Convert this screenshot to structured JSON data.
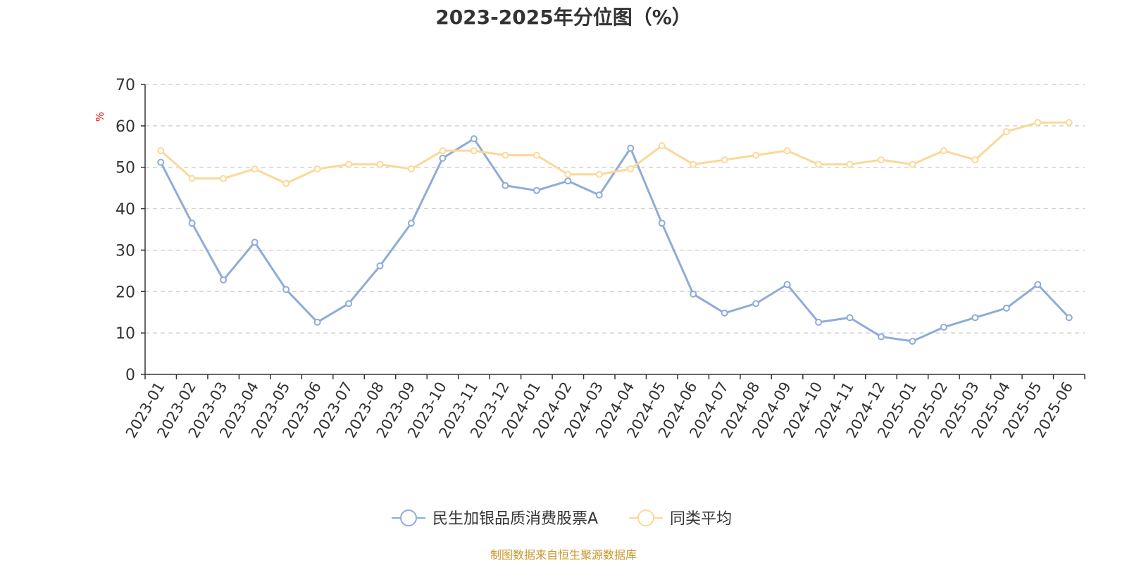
{
  "chart_data": {
    "type": "line",
    "title": "2023-2025年分位图（%）",
    "y_unit_label": "%",
    "ylim": [
      0,
      70
    ],
    "y_ticks": [
      0,
      10,
      20,
      30,
      40,
      50,
      60,
      70
    ],
    "grid": true,
    "legend_position": "bottom",
    "categories": [
      "2023-01",
      "2023-02",
      "2023-03",
      "2023-04",
      "2023-05",
      "2023-06",
      "2023-07",
      "2023-08",
      "2023-09",
      "2023-10",
      "2023-11",
      "2023-12",
      "2024-01",
      "2024-02",
      "2024-03",
      "2024-04",
      "2024-05",
      "2024-06",
      "2024-07",
      "2024-08",
      "2024-09",
      "2024-10",
      "2024-11",
      "2024-12",
      "2025-01",
      "2025-02",
      "2025-03",
      "2025-04",
      "2025-05",
      "2025-06"
    ],
    "series": [
      {
        "name": "民生加银品质消费股票A",
        "color": "#8eacd8",
        "values": [
          51.2,
          36.5,
          22.8,
          31.9,
          20.5,
          12.6,
          17.1,
          26.2,
          36.5,
          52.2,
          56.9,
          45.6,
          44.4,
          46.7,
          43.3,
          54.6,
          36.5,
          19.4,
          14.8,
          17.1,
          21.7,
          12.6,
          13.7,
          9.1,
          8.0,
          11.4,
          13.7,
          16.0,
          21.7,
          13.7
        ]
      },
      {
        "name": "同类平均",
        "color": "#fcd898",
        "values": [
          54.0,
          47.3,
          47.3,
          49.6,
          46.1,
          49.6,
          50.7,
          50.7,
          49.6,
          54.0,
          54.0,
          52.9,
          52.9,
          48.3,
          48.3,
          49.6,
          55.2,
          50.7,
          51.8,
          52.9,
          54.0,
          50.7,
          50.7,
          51.8,
          50.7,
          54.0,
          51.8,
          58.6,
          60.8,
          60.8
        ]
      }
    ],
    "source_note": "制图数据来自恒生聚源数据库"
  }
}
